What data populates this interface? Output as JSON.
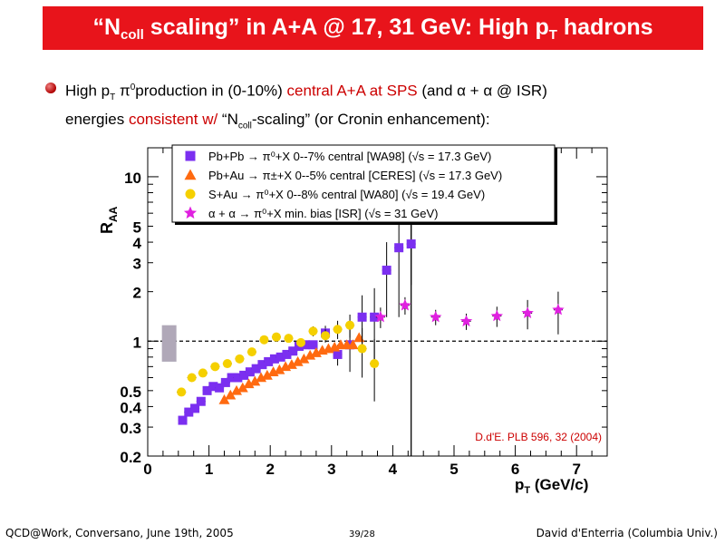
{
  "slide": {
    "title_pre": "“N",
    "title_sub": "coll",
    "title_mid": " scaling” in A+A @ 17, 31 GeV: High p",
    "title_sub2": "T",
    "title_post": " hadrons",
    "bullet": {
      "t1": "High p",
      "t1_sub": "T",
      "t2": " π",
      "t2_sup": "0",
      "t3": "production in (0-10%) ",
      "red1": "central A+A at SPS",
      "t4": " (and α + α  @ ISR)",
      "t5": "energies ",
      "red2": "consistent w/",
      "t6": "  “N",
      "t6_sub": "coll",
      "t7": "-scaling” (or Cronin enhancement):"
    },
    "footer_left": "QCD@Work, Conversano, June 19th, 2005",
    "footer_center": "39/28",
    "footer_right": "David d'Enterria (Columbia Univ.)"
  },
  "chart_data": {
    "type": "scatter",
    "x_scale": "linear",
    "y_scale": "log",
    "xlim": [
      0,
      7.5
    ],
    "ylim": [
      0.2,
      15
    ],
    "xlabel": "p",
    "xlabel_sub": "T",
    "xlabel_unit": " (GeV/c)",
    "ylabel": "R",
    "ylabel_sub": "AA",
    "x_ticks": [
      0,
      1,
      2,
      3,
      4,
      5,
      6,
      7
    ],
    "y_ticks": [
      0.2,
      0.3,
      0.4,
      0.5,
      1,
      2,
      3,
      4,
      5,
      10
    ],
    "y_tick_labels": [
      "0.2",
      "0.3",
      "0.4",
      "0.5",
      "1",
      "2",
      "3",
      "4",
      "5",
      "10"
    ],
    "reference_line_y": 1,
    "vertical_line_x": 4.3,
    "annotation": "D.d'E. PLB 596, 32 (2004)",
    "legend_position": "top",
    "series": [
      {
        "name": "Pb+Pb → π⁰+X  0--7%  central [WA98] (√s = 17.3 GeV)",
        "marker": "square",
        "color": "#7b2ff0",
        "points": [
          {
            "x": 0.57,
            "y": 0.33
          },
          {
            "x": 0.67,
            "y": 0.37
          },
          {
            "x": 0.77,
            "y": 0.39
          },
          {
            "x": 0.87,
            "y": 0.43
          },
          {
            "x": 0.97,
            "y": 0.5
          },
          {
            "x": 1.07,
            "y": 0.53
          },
          {
            "x": 1.17,
            "y": 0.52
          },
          {
            "x": 1.27,
            "y": 0.56
          },
          {
            "x": 1.37,
            "y": 0.6
          },
          {
            "x": 1.47,
            "y": 0.6
          },
          {
            "x": 1.57,
            "y": 0.62
          },
          {
            "x": 1.67,
            "y": 0.65
          },
          {
            "x": 1.77,
            "y": 0.68
          },
          {
            "x": 1.87,
            "y": 0.72
          },
          {
            "x": 1.97,
            "y": 0.75
          },
          {
            "x": 2.07,
            "y": 0.78
          },
          {
            "x": 2.17,
            "y": 0.8
          },
          {
            "x": 2.27,
            "y": 0.83
          },
          {
            "x": 2.37,
            "y": 0.87
          },
          {
            "x": 2.47,
            "y": 0.93
          },
          {
            "x": 2.57,
            "y": 0.95
          },
          {
            "x": 2.7,
            "y": 0.95
          },
          {
            "x": 2.9,
            "y": 1.12
          },
          {
            "x": 3.1,
            "y": 0.83
          },
          {
            "x": 3.3,
            "y": 0.95
          },
          {
            "x": 3.5,
            "y": 1.4
          },
          {
            "x": 3.7,
            "y": 1.4
          },
          {
            "x": 3.9,
            "y": 2.7
          },
          {
            "x": 4.1,
            "y": 3.7
          },
          {
            "x": 4.3,
            "y": 3.9
          }
        ],
        "errors": [
          0.01,
          0.01,
          0.01,
          0.01,
          0.01,
          0.01,
          0.01,
          0.01,
          0.01,
          0.01,
          0.01,
          0.01,
          0.01,
          0.01,
          0.02,
          0.02,
          0.02,
          0.03,
          0.03,
          0.04,
          0.05,
          0.05,
          0.12,
          0.12,
          0.3,
          0.5,
          0.7,
          1.3,
          2.3,
          1.7
        ]
      },
      {
        "name": "Pb+Au → π±+X  0--5% central [CERES] (√s = 17.3 GeV)",
        "marker": "triangle",
        "color": "#ff6a10",
        "points": [
          {
            "x": 1.25,
            "y": 0.44
          },
          {
            "x": 1.35,
            "y": 0.47
          },
          {
            "x": 1.45,
            "y": 0.5
          },
          {
            "x": 1.55,
            "y": 0.52
          },
          {
            "x": 1.65,
            "y": 0.55
          },
          {
            "x": 1.75,
            "y": 0.57
          },
          {
            "x": 1.85,
            "y": 0.6
          },
          {
            "x": 1.95,
            "y": 0.62
          },
          {
            "x": 2.05,
            "y": 0.65
          },
          {
            "x": 2.15,
            "y": 0.67
          },
          {
            "x": 2.25,
            "y": 0.7
          },
          {
            "x": 2.35,
            "y": 0.72
          },
          {
            "x": 2.45,
            "y": 0.75
          },
          {
            "x": 2.55,
            "y": 0.78
          },
          {
            "x": 2.65,
            "y": 0.82
          },
          {
            "x": 2.75,
            "y": 0.85
          },
          {
            "x": 2.85,
            "y": 0.88
          },
          {
            "x": 2.95,
            "y": 0.9
          },
          {
            "x": 3.05,
            "y": 0.92
          },
          {
            "x": 3.15,
            "y": 0.95
          },
          {
            "x": 3.25,
            "y": 0.95
          },
          {
            "x": 3.35,
            "y": 0.95
          },
          {
            "x": 3.45,
            "y": 1.05
          }
        ],
        "errors": []
      },
      {
        "name": "S+Au → π⁰+X 0--8%  central [WA80] (√s = 19.4 GeV)",
        "marker": "circle",
        "color": "#f5d000",
        "points": [
          {
            "x": 0.55,
            "y": 0.49
          },
          {
            "x": 0.72,
            "y": 0.6
          },
          {
            "x": 0.9,
            "y": 0.64
          },
          {
            "x": 1.1,
            "y": 0.7
          },
          {
            "x": 1.3,
            "y": 0.73
          },
          {
            "x": 1.5,
            "y": 0.78
          },
          {
            "x": 1.7,
            "y": 0.86
          },
          {
            "x": 1.9,
            "y": 1.02
          },
          {
            "x": 2.1,
            "y": 1.06
          },
          {
            "x": 2.3,
            "y": 1.04
          },
          {
            "x": 2.5,
            "y": 0.98
          },
          {
            "x": 2.7,
            "y": 1.15
          },
          {
            "x": 2.9,
            "y": 1.08
          },
          {
            "x": 3.1,
            "y": 1.18
          },
          {
            "x": 3.3,
            "y": 1.25
          },
          {
            "x": 3.5,
            "y": 0.9
          },
          {
            "x": 3.7,
            "y": 0.73
          }
        ],
        "errors": [
          0.02,
          0.02,
          0.02,
          0.03,
          0.03,
          0.03,
          0.04,
          0.05,
          0.05,
          0.05,
          0.06,
          0.08,
          0.1,
          0.15,
          0.2,
          0.3,
          0.3
        ]
      },
      {
        "name": "α + α → π⁰+X min. bias [ISR] (√s = 31 GeV)",
        "marker": "star",
        "color": "#e020e0",
        "points": [
          {
            "x": 3.8,
            "y": 1.4
          },
          {
            "x": 4.2,
            "y": 1.65
          },
          {
            "x": 4.7,
            "y": 1.4
          },
          {
            "x": 5.2,
            "y": 1.32
          },
          {
            "x": 5.7,
            "y": 1.42
          },
          {
            "x": 6.2,
            "y": 1.48
          },
          {
            "x": 6.7,
            "y": 1.55
          }
        ],
        "errors": [
          0.2,
          0.2,
          0.15,
          0.15,
          0.2,
          0.3,
          0.45
        ]
      }
    ],
    "systematic_box": {
      "x": 0.35,
      "ylow": 0.75,
      "yhigh": 1.25,
      "color": "#b0a8b8"
    }
  }
}
